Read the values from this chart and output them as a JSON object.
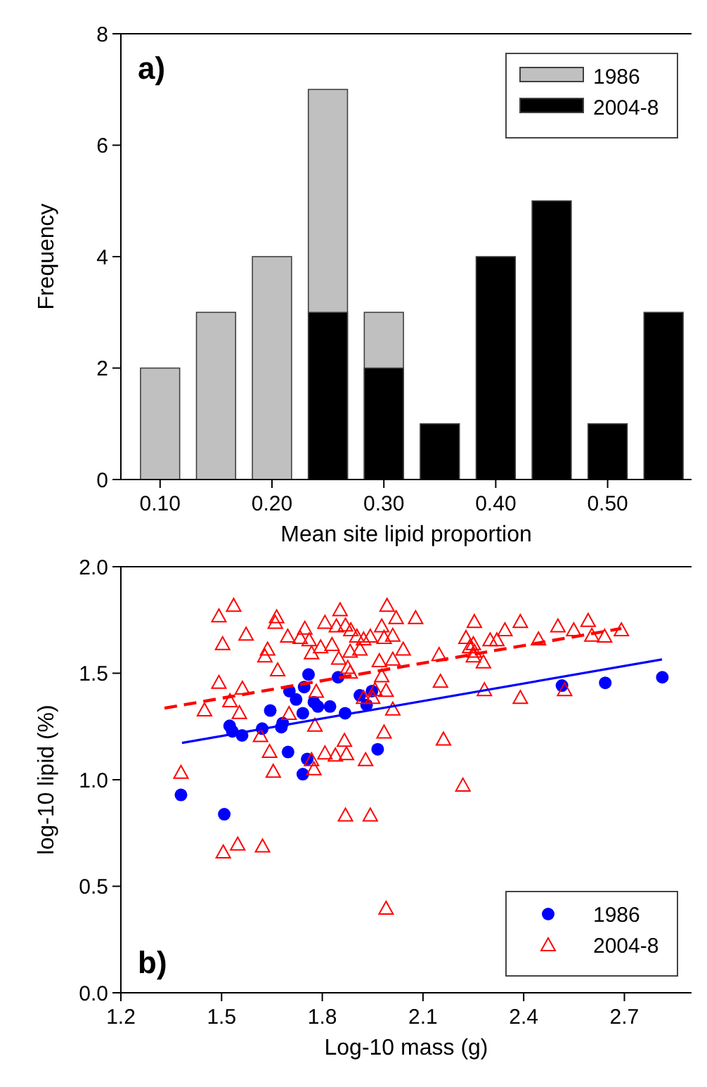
{
  "chart_data": [
    {
      "type": "bar",
      "xlabel": "Mean site lipid proportion",
      "ylabel": "Frequency",
      "annotations": [
        "a)"
      ],
      "categories": [
        "0.10",
        null,
        "0.20",
        null,
        "0.30",
        null,
        "0.40",
        null,
        "0.50",
        null
      ],
      "series": [
        {
          "name": "1986",
          "color": "#c0c0c0",
          "values": [
            2,
            3,
            4,
            7,
            3,
            0,
            0,
            0,
            0,
            0
          ]
        },
        {
          "name": "2004-8",
          "color": "#000000",
          "values": [
            0,
            0,
            0,
            3,
            2,
            1,
            4,
            5,
            1,
            3
          ]
        }
      ],
      "ylim": [
        0,
        8
      ],
      "yticks": [
        0,
        2,
        4,
        6,
        8
      ],
      "legend": "top right"
    },
    {
      "type": "scatter",
      "xlabel": "Log-10 mass (g)",
      "ylabel": "log-10 lipid (%)",
      "annotations": [
        "b)"
      ],
      "series": [
        {
          "name": "1986",
          "color": "#0000ff",
          "marker": "circle",
          "x": [
            1.759,
            1.847,
            1.702,
            1.746,
            1.722,
            1.775,
            1.787,
            1.823,
            1.645,
            1.742,
            1.682,
            1.868,
            1.912,
            1.948,
            1.932,
            1.524,
            1.532,
            1.561,
            1.621,
            1.678,
            1.698,
            1.755,
            1.742,
            1.965,
            1.379,
            1.508,
            2.514,
            2.643,
            2.813
          ],
          "values": [
            1.494,
            1.481,
            1.416,
            1.435,
            1.377,
            1.364,
            1.344,
            1.344,
            1.325,
            1.312,
            1.266,
            1.312,
            1.396,
            1.416,
            1.351,
            1.253,
            1.227,
            1.208,
            1.24,
            1.247,
            1.13,
            1.097,
            1.026,
            1.143,
            0.929,
            0.838,
            1.442,
            1.455,
            1.481
          ]
        },
        {
          "name": "2004-8",
          "color": "#ff0000",
          "marker": "triangle",
          "x": [
            1.536,
            1.492,
            1.664,
            1.66,
            1.573,
            1.503,
            1.748,
            1.808,
            1.853,
            1.993,
            2.02,
            2.078,
            1.977,
            1.697,
            1.734,
            1.761,
            1.795,
            1.842,
            1.869,
            1.885,
            1.903,
            1.923,
            1.943,
            1.984,
            2.01,
            2.041,
            1.637,
            1.629,
            1.667,
            1.768,
            1.829,
            1.883,
            1.912,
            1.849,
            1.876,
            1.883,
            1.97,
            2.01,
            1.492,
            1.562,
            1.525,
            1.782,
            1.977,
            1.99,
            1.957,
            1.923,
            1.95,
            2.01,
            1.449,
            1.553,
            1.701,
            1.778,
            1.984,
            1.616,
            1.643,
            1.866,
            1.808,
            1.839,
            1.872,
            1.929,
            1.768,
            1.775,
            1.379,
            1.654,
            2.219,
            1.869,
            1.943,
            1.505,
            1.548,
            1.622,
            1.99,
            2.253,
            2.39,
            2.502,
            2.592,
            2.344,
            2.549,
            2.691,
            2.228,
            2.603,
            2.641,
            2.3,
            2.32,
            2.444,
            2.25,
            2.239,
            2.253,
            2.148,
            2.25,
            2.28,
            2.152,
            2.283,
            2.39,
            2.522,
            2.161
          ],
          "values": [
            1.818,
            1.768,
            1.764,
            1.738,
            1.682,
            1.638,
            1.71,
            1.738,
            1.797,
            1.818,
            1.76,
            1.76,
            1.721,
            1.673,
            1.667,
            1.656,
            1.623,
            1.721,
            1.725,
            1.703,
            1.673,
            1.66,
            1.673,
            1.667,
            1.677,
            1.612,
            1.612,
            1.58,
            1.515,
            1.595,
            1.634,
            1.602,
            1.612,
            1.569,
            1.526,
            1.504,
            1.558,
            1.565,
            1.456,
            1.429,
            1.37,
            1.414,
            1.487,
            1.418,
            1.422,
            1.385,
            1.385,
            1.331,
            1.327,
            1.314,
            1.31,
            1.255,
            1.223,
            1.206,
            1.132,
            1.184,
            1.125,
            1.115,
            1.121,
            1.093,
            1.093,
            1.05,
            1.034,
            1.039,
            0.974,
            0.833,
            0.833,
            0.66,
            0.697,
            0.688,
            0.396,
            1.742,
            1.742,
            1.721,
            1.747,
            1.703,
            1.703,
            1.703,
            1.667,
            1.677,
            1.673,
            1.656,
            1.656,
            1.66,
            1.638,
            1.623,
            1.602,
            1.587,
            1.58,
            1.552,
            1.461,
            1.422,
            1.385,
            1.422,
            1.19
          ]
        },
        {
          "type": "line",
          "color": "#ff0000",
          "line_style": "dashed",
          "x": [
            1.33,
            2.691
          ],
          "values": [
            1.336,
            1.71
          ]
        },
        {
          "type": "line",
          "color": "#0000ff",
          "line_style": "solid",
          "x": [
            1.382,
            2.812
          ],
          "values": [
            1.173,
            1.565
          ]
        }
      ],
      "xlim": [
        1.2,
        2.9
      ],
      "xticks": [
        1.2,
        1.5,
        1.8,
        2.1,
        2.4,
        2.7
      ],
      "ylim": [
        0,
        2
      ],
      "yticks": [
        {
          "value": 0,
          "label": "0.0"
        },
        0.5,
        {
          "value": 1,
          "label": "1.0"
        },
        1.5,
        {
          "value": 2,
          "label": "2.0"
        }
      ],
      "legend": "bottom right"
    }
  ]
}
